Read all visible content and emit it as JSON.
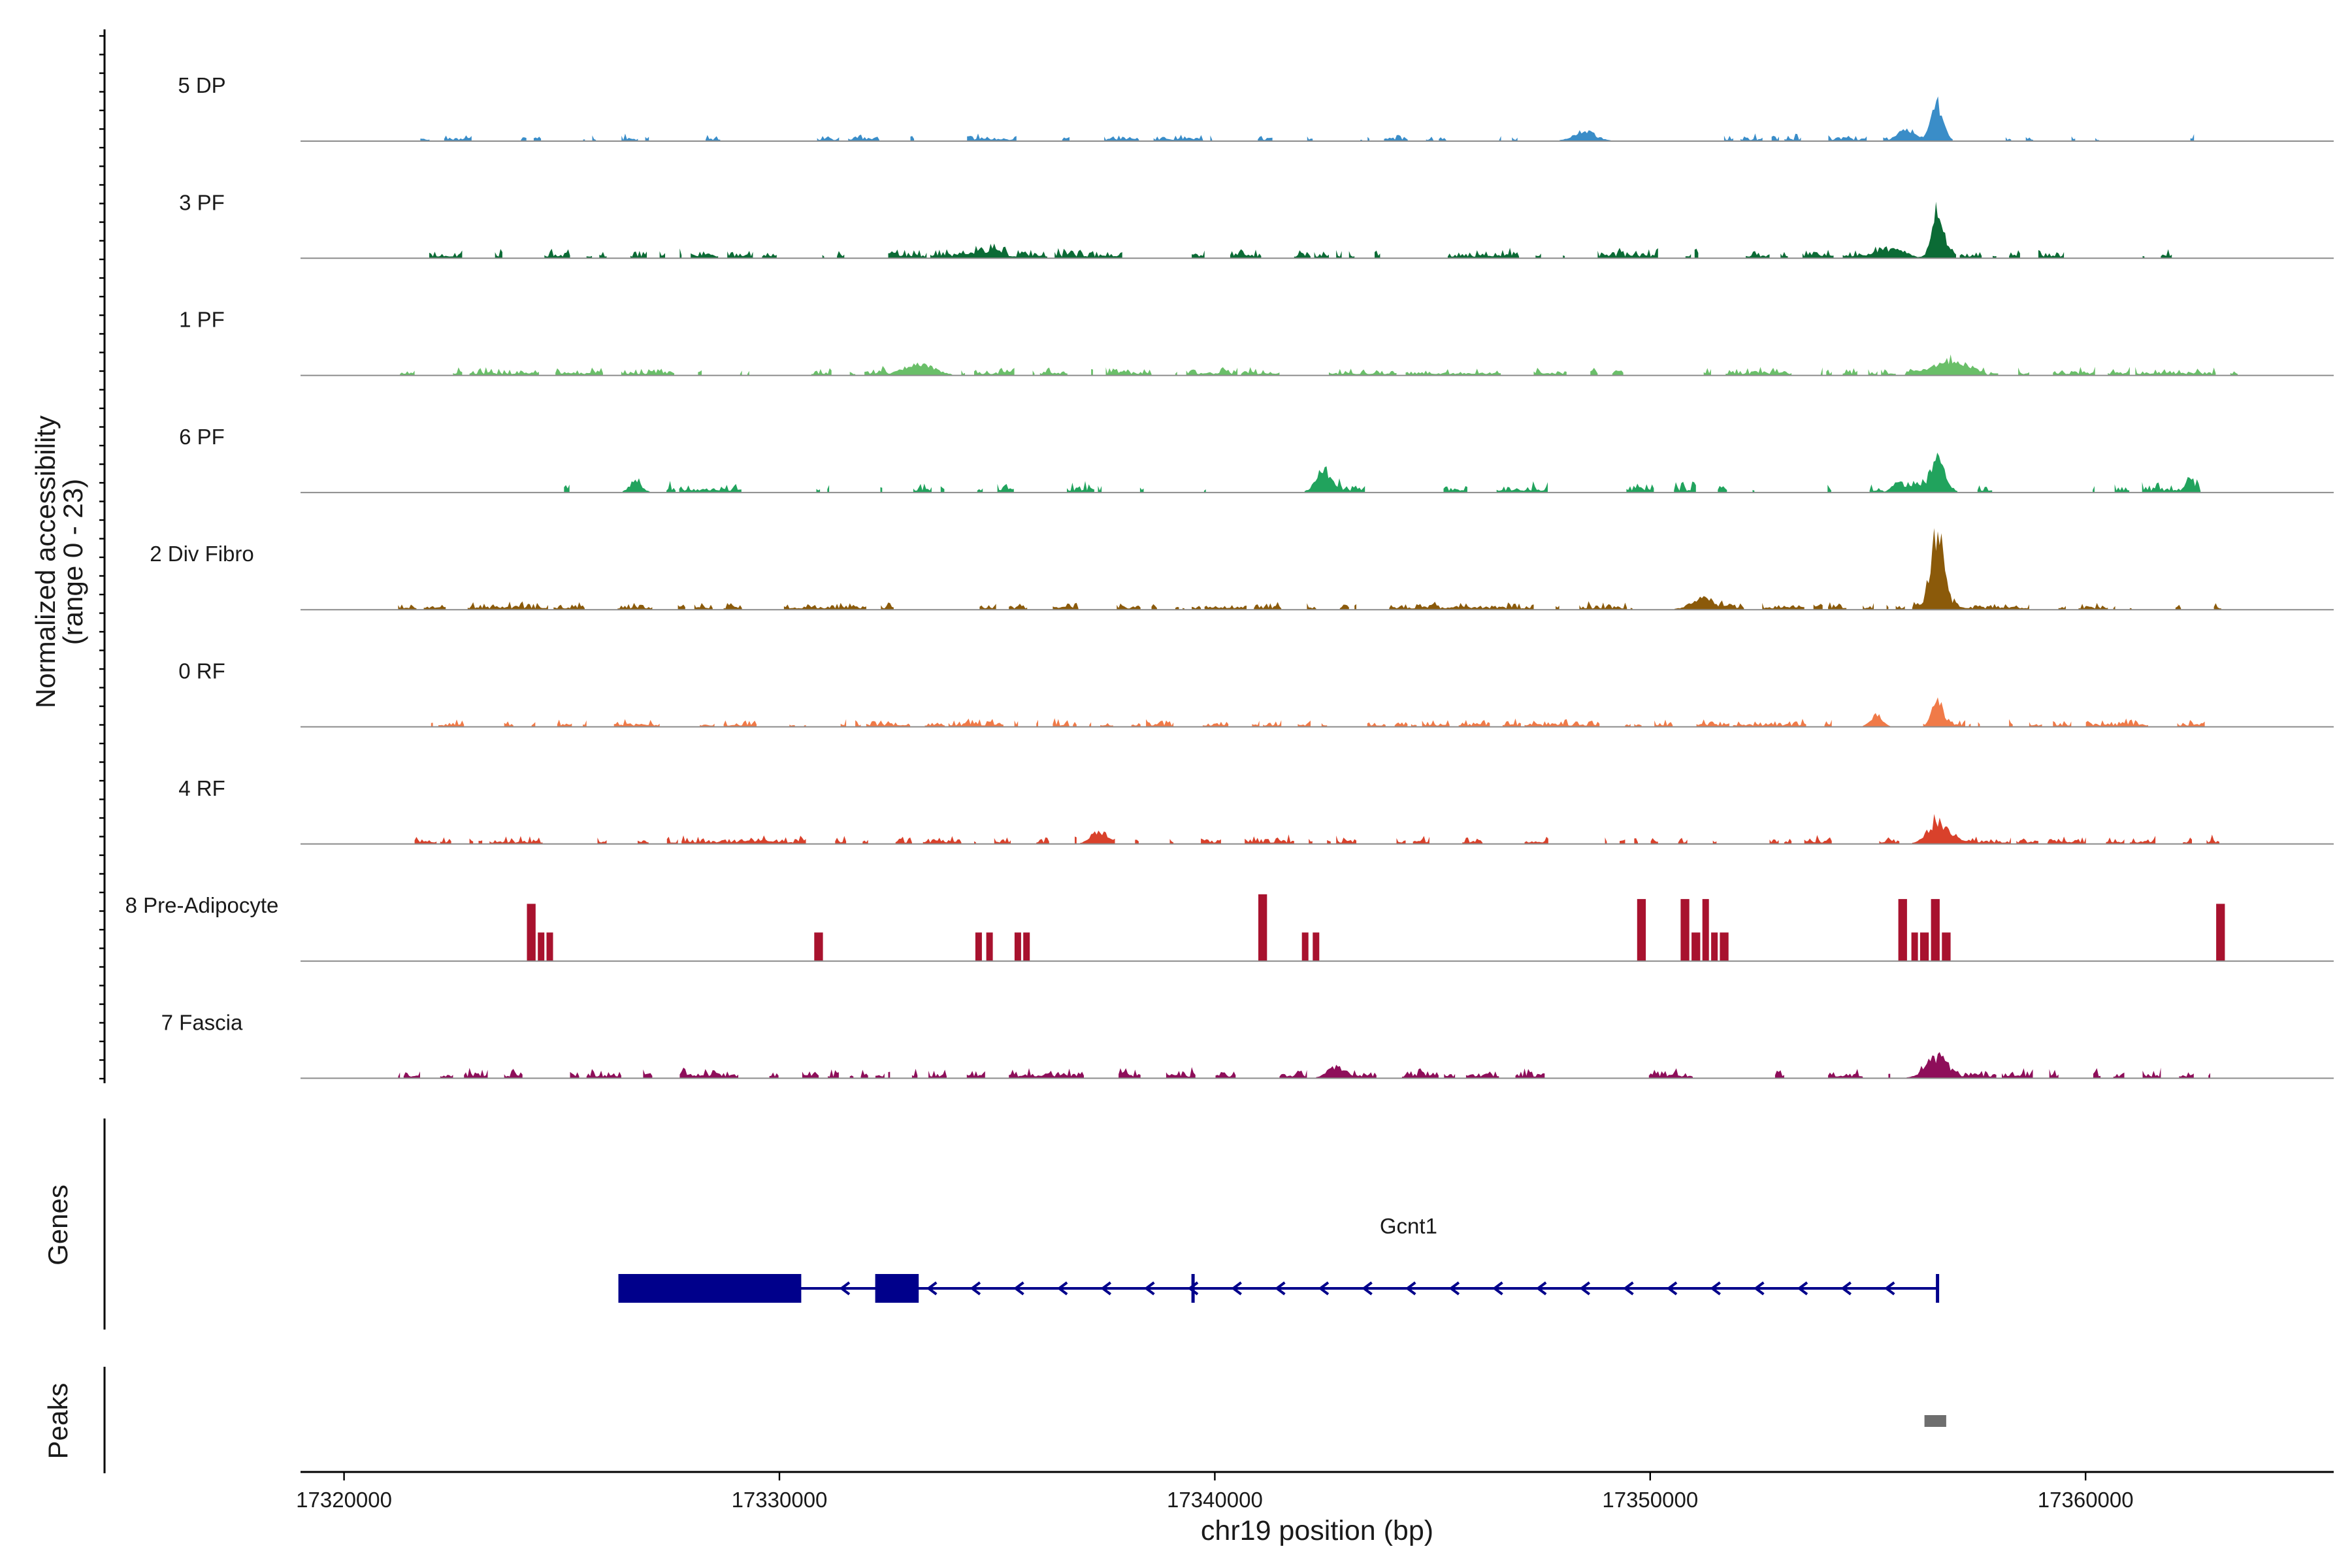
{
  "chart_data": {
    "type": "genome-track",
    "x_label": "chr19 position (bp)",
    "y_label_line1": "Normalized accessibility",
    "y_label_line2": "(range 0 - 23)",
    "y_range": [
      0,
      23
    ],
    "x_range": [
      17319000,
      17365700
    ],
    "x_ticks": [
      {
        "value": 17320000,
        "label": "17320000"
      },
      {
        "value": 17330000,
        "label": "17330000"
      },
      {
        "value": 17340000,
        "label": "17340000"
      },
      {
        "value": 17350000,
        "label": "17350000"
      },
      {
        "value": 17360000,
        "label": "17360000"
      }
    ],
    "tracks": [
      {
        "label": "5 DP",
        "color": "#3a8dc8",
        "span": [
          17321500,
          17363500
        ],
        "density": 0.34,
        "base": 0.9,
        "seed": 11,
        "peaks": [
          [
            17356600,
            8.5,
            200
          ],
          [
            17355900,
            3.0,
            300
          ],
          [
            17348500,
            2.0,
            400
          ]
        ]
      },
      {
        "label": "3 PF",
        "color": "#0b6b35",
        "span": [
          17321200,
          17362000
        ],
        "density": 0.52,
        "base": 1.3,
        "seed": 23,
        "peaks": [
          [
            17356600,
            14.0,
            180
          ],
          [
            17355600,
            2.5,
            400
          ],
          [
            17334800,
            1.8,
            500
          ]
        ]
      },
      {
        "label": "1 PF",
        "color": "#6abf69",
        "span": [
          17321200,
          17363500
        ],
        "density": 0.62,
        "base": 1.1,
        "seed": 37,
        "peaks": [
          [
            17333200,
            3.0,
            500
          ],
          [
            17356800,
            3.0,
            600
          ]
        ]
      },
      {
        "label": "6 PF",
        "color": "#21a35d",
        "span": [
          17324800,
          17363000
        ],
        "density": 0.28,
        "base": 1.4,
        "seed": 41,
        "peaks": [
          [
            17356600,
            9.0,
            250
          ],
          [
            17342500,
            6.0,
            250
          ],
          [
            17326700,
            3.0,
            200
          ],
          [
            17362400,
            4.0,
            150
          ],
          [
            17355700,
            3.0,
            200
          ]
        ]
      },
      {
        "label": "2 Div Fibro",
        "color": "#8b5a0a",
        "span": [
          17321200,
          17363700
        ],
        "density": 0.48,
        "base": 1.0,
        "seed": 53,
        "peaks": [
          [
            17356600,
            19.0,
            220
          ],
          [
            17351200,
            2.5,
            400
          ]
        ]
      },
      {
        "label": "0 RF",
        "color": "#f07a48",
        "span": [
          17321200,
          17363500
        ],
        "density": 0.58,
        "base": 1.0,
        "seed": 67,
        "peaks": [
          [
            17356600,
            6.0,
            180
          ],
          [
            17355200,
            3.0,
            200
          ]
        ]
      },
      {
        "label": "4 RF",
        "color": "#d9412b",
        "span": [
          17321200,
          17363500
        ],
        "density": 0.48,
        "base": 1.1,
        "seed": 79,
        "peaks": [
          [
            17356600,
            5.0,
            350
          ],
          [
            17337300,
            3.0,
            250
          ]
        ]
      },
      {
        "label": "8 Pre-Adipocyte",
        "color": "#a8122e",
        "blocks": [
          [
            17324200,
            17324400,
            12
          ],
          [
            17324450,
            17324600,
            6
          ],
          [
            17324650,
            17324800,
            6
          ],
          [
            17330800,
            17331000,
            6
          ],
          [
            17334500,
            17334650,
            6
          ],
          [
            17334750,
            17334900,
            6
          ],
          [
            17335400,
            17335550,
            6
          ],
          [
            17335600,
            17335750,
            6
          ],
          [
            17341000,
            17341200,
            14
          ],
          [
            17342000,
            17342150,
            6
          ],
          [
            17342250,
            17342400,
            6
          ],
          [
            17349700,
            17349900,
            13
          ],
          [
            17350700,
            17350900,
            13
          ],
          [
            17350950,
            17351150,
            6
          ],
          [
            17351200,
            17351350,
            13
          ],
          [
            17351400,
            17351550,
            6
          ],
          [
            17351600,
            17351800,
            6
          ],
          [
            17355700,
            17355900,
            13
          ],
          [
            17356000,
            17356150,
            6
          ],
          [
            17356200,
            17356400,
            6
          ],
          [
            17356450,
            17356650,
            13
          ],
          [
            17356700,
            17356900,
            6
          ],
          [
            17363000,
            17363200,
            12
          ]
        ]
      },
      {
        "label": "7 Fascia",
        "color": "#8e0e5a",
        "span": [
          17321200,
          17363000
        ],
        "density": 0.55,
        "base": 1.3,
        "seed": 97,
        "peaks": [
          [
            17356600,
            4.5,
            400
          ],
          [
            17342800,
            3.0,
            300
          ]
        ]
      }
    ],
    "genes_label": "Genes",
    "gene": {
      "name": "Gcnt1",
      "strand": "-",
      "color": "#00008b",
      "transcript": [
        17326300,
        17356600
      ],
      "inner_mark": 17339500,
      "exons": [
        [
          17326300,
          17330500
        ],
        [
          17332200,
          17333200
        ]
      ]
    },
    "peaks_label": "Peaks",
    "peak_regions": [
      {
        "start": 17356300,
        "end": 17356800,
        "color": "#6e6e6e"
      }
    ]
  }
}
